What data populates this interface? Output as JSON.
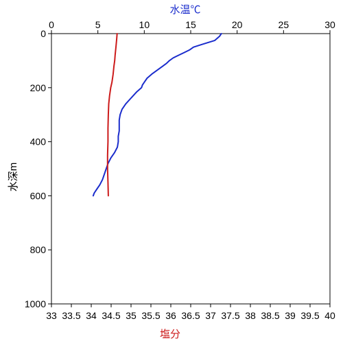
{
  "chart_data": {
    "type": "line",
    "y_axis": {
      "label": "水深m",
      "range": [
        0,
        1000
      ],
      "inverted": true,
      "ticks": [
        0,
        200,
        400,
        600,
        800,
        1000
      ],
      "tick_labels": [
        "0",
        "200",
        "400",
        "600",
        "800",
        "1000"
      ]
    },
    "top_x_axis": {
      "label": "水温℃",
      "label_color": "#1a2ccc",
      "range": [
        0,
        30
      ],
      "ticks": [
        0,
        5,
        10,
        15,
        20,
        25,
        30
      ],
      "tick_labels": [
        "0",
        "5",
        "10",
        "15",
        "20",
        "25",
        "30"
      ]
    },
    "bottom_x_axis": {
      "label": "塩分",
      "label_color": "#cc1a1a",
      "range": [
        33,
        40
      ],
      "ticks": [
        33,
        33.5,
        34,
        34.5,
        35,
        35.5,
        36,
        36.5,
        37,
        37.5,
        38,
        38.5,
        39,
        39.5,
        40
      ],
      "tick_labels": [
        "33",
        "33.5",
        "34",
        "34.5",
        "35",
        "35.5",
        "36",
        "36.5",
        "37",
        "37.5",
        "38",
        "38.5",
        "39",
        "39.5",
        "40"
      ]
    },
    "grid": false,
    "series": [
      {
        "axis": "top",
        "color": "#1a2ccc",
        "depth": [
          0,
          10,
          25,
          40,
          50,
          60,
          70,
          80,
          90,
          100,
          110,
          120,
          135,
          150,
          165,
          180,
          190,
          200,
          215,
          230,
          245,
          260,
          280,
          300,
          320,
          340,
          360,
          380,
          400,
          420,
          440,
          460,
          480,
          500,
          520,
          540,
          560,
          575,
          590,
          600
        ],
        "values": [
          18.3,
          18.1,
          17.6,
          16.2,
          15.3,
          14.9,
          14.3,
          13.7,
          13.1,
          12.7,
          12.4,
          12.0,
          11.4,
          10.8,
          10.3,
          10.0,
          9.8,
          9.7,
          9.2,
          8.8,
          8.4,
          8.0,
          7.6,
          7.4,
          7.3,
          7.3,
          7.3,
          7.2,
          7.2,
          7.1,
          6.8,
          6.4,
          6.1,
          5.9,
          5.7,
          5.5,
          5.2,
          4.9,
          4.6,
          4.5
        ]
      },
      {
        "axis": "bottom",
        "color": "#cc1a1a",
        "depth": [
          0,
          20,
          50,
          80,
          100,
          120,
          150,
          180,
          200,
          230,
          260,
          300,
          350,
          400,
          450,
          500,
          550,
          600
        ],
        "values": [
          34.65,
          34.64,
          34.62,
          34.6,
          34.59,
          34.57,
          34.55,
          34.52,
          34.49,
          34.46,
          34.44,
          34.43,
          34.42,
          34.42,
          34.41,
          34.41,
          34.42,
          34.43
        ]
      }
    ]
  }
}
